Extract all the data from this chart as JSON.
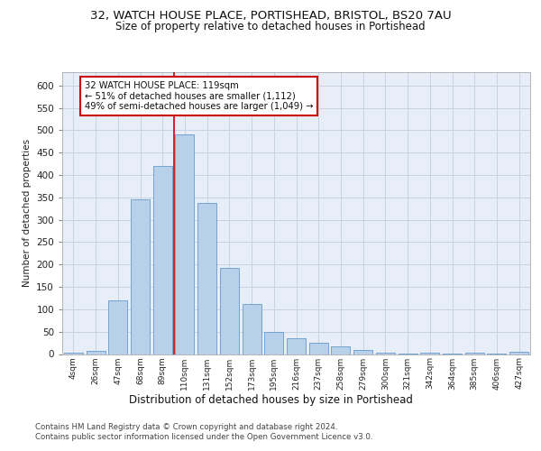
{
  "title1": "32, WATCH HOUSE PLACE, PORTISHEAD, BRISTOL, BS20 7AU",
  "title2": "Size of property relative to detached houses in Portishead",
  "xlabel": "Distribution of detached houses by size in Portishead",
  "ylabel": "Number of detached properties",
  "categories": [
    "4sqm",
    "26sqm",
    "47sqm",
    "68sqm",
    "89sqm",
    "110sqm",
    "131sqm",
    "152sqm",
    "173sqm",
    "195sqm",
    "216sqm",
    "237sqm",
    "258sqm",
    "279sqm",
    "300sqm",
    "321sqm",
    "342sqm",
    "364sqm",
    "385sqm",
    "406sqm",
    "427sqm"
  ],
  "values": [
    4,
    7,
    120,
    345,
    420,
    490,
    338,
    193,
    111,
    50,
    35,
    25,
    17,
    10,
    4,
    2,
    4,
    2,
    4,
    2,
    6
  ],
  "bar_color": "#b8d0ea",
  "bar_edge_color": "#6699cc",
  "vline_color": "#cc0000",
  "vline_x_index": 5,
  "grid_color": "#c8d4e4",
  "background_color": "#e8eef8",
  "ylim_max": 630,
  "ytick_interval": 50,
  "annotation_line1": "32 WATCH HOUSE PLACE: 119sqm",
  "annotation_line2": "← 51% of detached houses are smaller (1,112)",
  "annotation_line3": "49% of semi-detached houses are larger (1,049) →",
  "annotation_box_color": "#ffffff",
  "annotation_box_edge": "#cc0000",
  "footer1": "Contains HM Land Registry data © Crown copyright and database right 2024.",
  "footer2": "Contains public sector information licensed under the Open Government Licence v3.0."
}
